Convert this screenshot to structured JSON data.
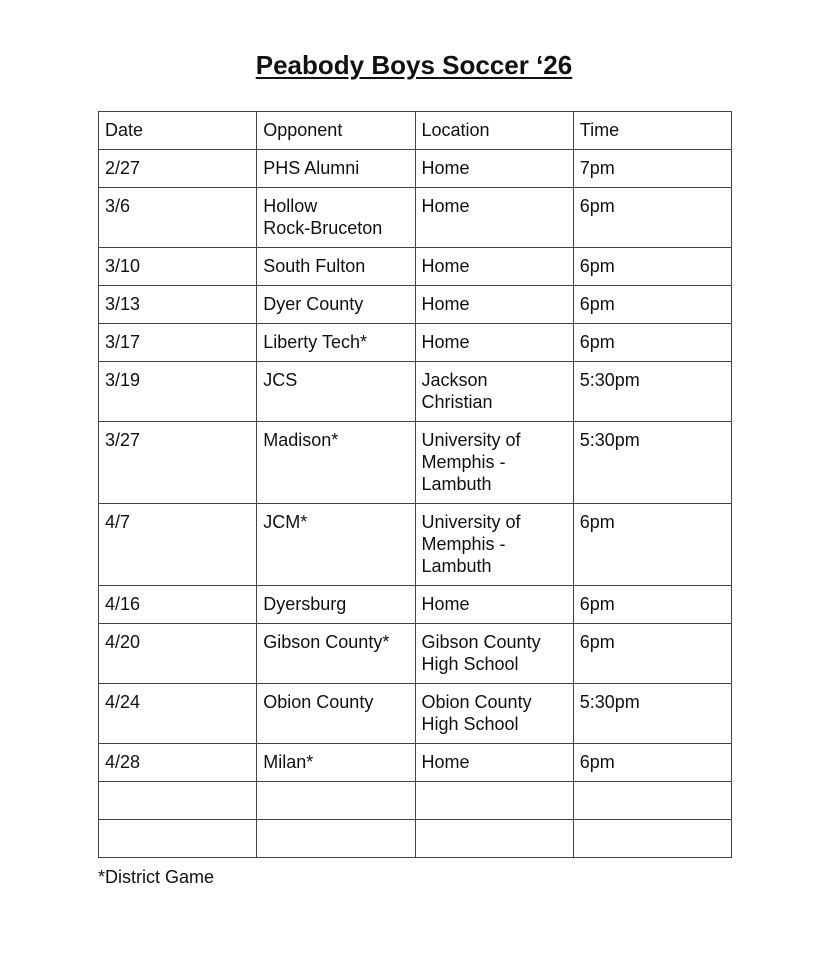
{
  "title": "Peabody Boys Soccer ‘26",
  "table": {
    "headers": [
      "Date",
      "Opponent",
      "Location",
      "Time"
    ],
    "rows": [
      [
        "2/27",
        "PHS Alumni",
        "Home",
        "7pm"
      ],
      [
        "3/6",
        "Hollow\nRock-Bruceton",
        "Home",
        "6pm"
      ],
      [
        "3/10",
        "South Fulton",
        "Home",
        "6pm"
      ],
      [
        "3/13",
        "Dyer County",
        "Home",
        "6pm"
      ],
      [
        "3/17",
        "Liberty Tech*",
        "Home",
        "6pm"
      ],
      [
        "3/19",
        "JCS",
        "Jackson\nChristian",
        "5:30pm"
      ],
      [
        "3/27",
        "Madison*",
        "University of\nMemphis -\nLambuth",
        "5:30pm"
      ],
      [
        "4/7",
        "JCM*",
        "University of\nMemphis -\nLambuth",
        "6pm"
      ],
      [
        "4/16",
        "Dyersburg",
        "Home",
        "6pm"
      ],
      [
        "4/20",
        "Gibson County*",
        "Gibson County\nHigh School",
        "6pm"
      ],
      [
        "4/24",
        "Obion County",
        "Obion County\nHigh School",
        "5:30pm"
      ],
      [
        "4/28",
        "Milan*",
        "Home",
        "6pm"
      ],
      [
        "",
        "",
        "",
        ""
      ],
      [
        "",
        "",
        "",
        ""
      ]
    ]
  },
  "footnote": "*District Game"
}
